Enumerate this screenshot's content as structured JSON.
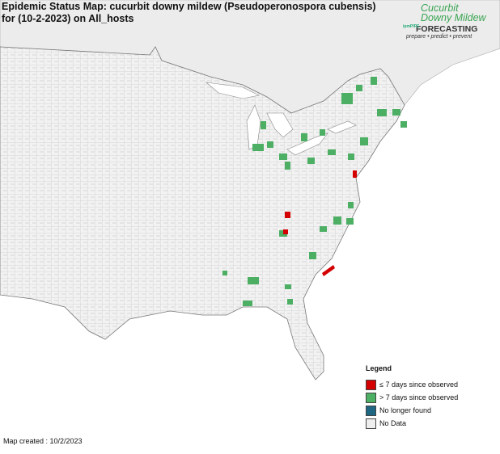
{
  "header": {
    "title": "Epidemic Status Map: cucurbit downy mildew (Pseudoperonospora cubensis) for (10-2-2023) on All_hosts"
  },
  "logo": {
    "line1": "Cucurbit",
    "line2": "Downy Mildew",
    "brand": "ipmPIPE",
    "product": "FORECASTING",
    "tagline": "prepare • predict • prevent"
  },
  "legend": {
    "title": "Legend",
    "items": [
      {
        "label": "≤ 7 days since observed",
        "color": "#d40000"
      },
      {
        "label": "> 7 days since observed",
        "color": "#4caf64"
      },
      {
        "label": "No longer found",
        "color": "#1f6682"
      },
      {
        "label": "No Data",
        "color": "#eeeeee"
      }
    ]
  },
  "footer": {
    "text": "Map created : 10/2/2023"
  }
}
